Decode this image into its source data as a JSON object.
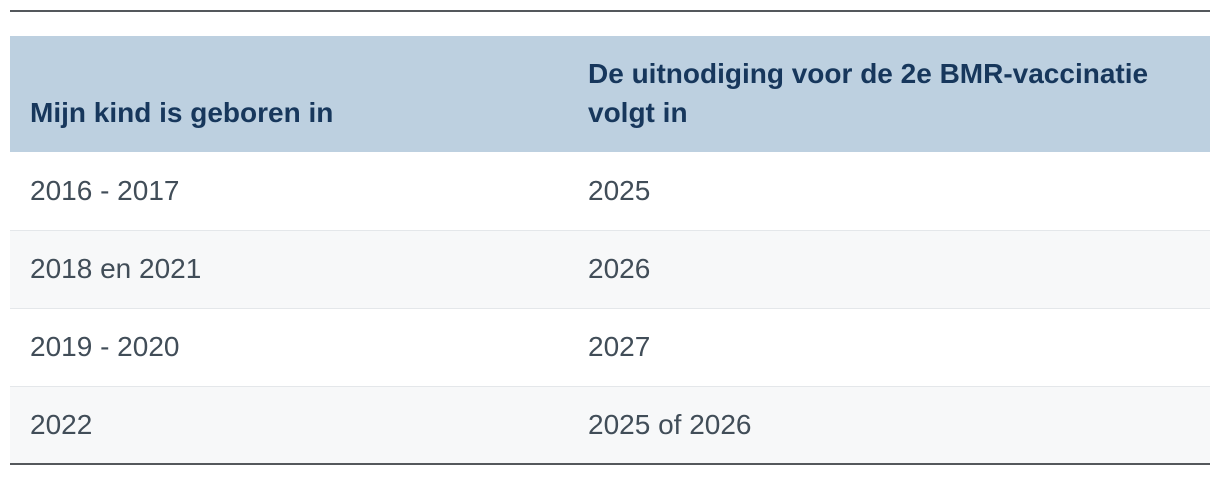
{
  "table": {
    "columns": [
      {
        "id": "born",
        "label": "Mijn kind is geboren in"
      },
      {
        "id": "invitation",
        "label": "De uitnodiging voor de 2e BMR-vaccinatie volgt in"
      }
    ],
    "rows": [
      {
        "born": "2016 - 2017",
        "invitation": "2025"
      },
      {
        "born": "2018 en 2021",
        "invitation": "2026"
      },
      {
        "born": "2019 - 2020",
        "invitation": "2027"
      },
      {
        "born": "2022",
        "invitation": "2025 of 2026"
      }
    ]
  },
  "colors": {
    "header_bg": "#bdd0e0",
    "header_text": "#17375c",
    "body_text": "#414d58",
    "row_alt_bg": "#f7f8f9",
    "separator": "#e4e7ea",
    "edge_line": "#54585c"
  }
}
